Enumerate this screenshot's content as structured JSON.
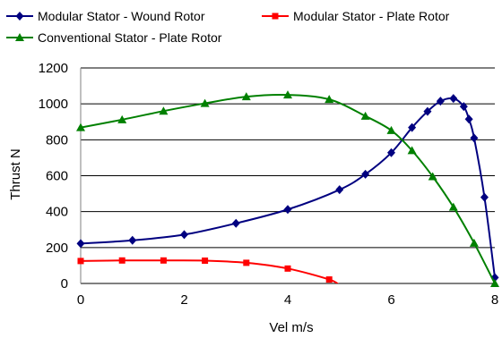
{
  "chart_data": {
    "type": "line",
    "title": "",
    "xlabel": "Vel m/s",
    "ylabel": "Thrust N",
    "xlim": [
      0,
      8
    ],
    "ylim": [
      0,
      1200
    ],
    "x_ticks": [
      "0",
      "2",
      "4",
      "6",
      "8"
    ],
    "y_ticks": [
      "0",
      "200",
      "400",
      "600",
      "800",
      "1000",
      "1200"
    ],
    "grid": "horizontal",
    "legend_position": "top",
    "series": [
      {
        "name": "Modular Stator - Wound Rotor",
        "color": "#000080",
        "marker": "diamond",
        "x": [
          0,
          1,
          2,
          3,
          4,
          5,
          5.5,
          6,
          6.4,
          6.7,
          6.95,
          7.2,
          7.4,
          7.5,
          7.6,
          7.8,
          8.0
        ],
        "y": [
          222,
          240,
          272,
          335,
          412,
          522,
          608,
          728,
          868,
          958,
          1015,
          1030,
          985,
          915,
          810,
          480,
          33
        ]
      },
      {
        "name": "Modular Stator - Plate Rotor",
        "color": "#ff0000",
        "marker": "square",
        "x": [
          0,
          0.8,
          1.6,
          2.4,
          3.2,
          4.0,
          4.8,
          5.0
        ],
        "y": [
          125,
          128,
          128,
          127,
          115,
          83,
          22,
          -10
        ]
      },
      {
        "name": "Conventional Stator - Plate Rotor",
        "color": "#008000",
        "marker": "triangle",
        "x": [
          0,
          0.8,
          1.6,
          2.4,
          3.2,
          4.0,
          4.8,
          5.5,
          6.0,
          6.4,
          6.8,
          7.2,
          7.6,
          8.0
        ],
        "y": [
          868,
          912,
          960,
          1003,
          1040,
          1050,
          1025,
          932,
          852,
          740,
          595,
          425,
          225,
          0
        ]
      }
    ]
  }
}
